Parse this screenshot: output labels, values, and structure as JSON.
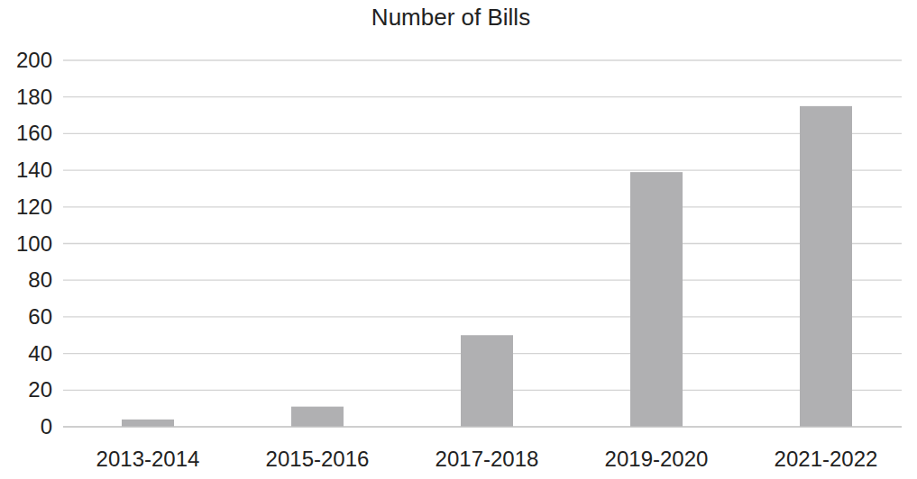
{
  "chart_data": {
    "type": "bar",
    "title": "Number of Bills",
    "categories": [
      "2013-2014",
      "2015-2016",
      "2017-2018",
      "2019-2020",
      "2021-2022"
    ],
    "values": [
      4,
      11,
      50,
      139,
      175
    ],
    "color": "#b0b0b2",
    "ylim": [
      0,
      200
    ],
    "yticks": [
      0,
      20,
      40,
      60,
      80,
      100,
      120,
      140,
      160,
      180,
      200
    ],
    "grid": true
  }
}
